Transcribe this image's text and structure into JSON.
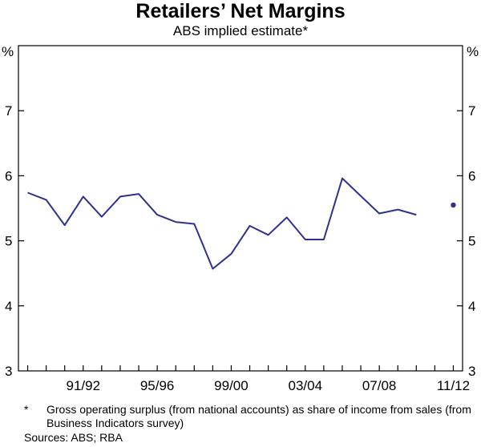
{
  "title": "Retailers’ Net Margins",
  "subtitle": "ABS implied estimate*",
  "footnote": {
    "marker": "*",
    "text": "Gross operating surplus (from national accounts) as share of income from sales (from Business Indicators survey)"
  },
  "sources": "Sources: ABS; RBA",
  "colors": {
    "series": "#2e3192",
    "axis": "#000000"
  },
  "chart_data": {
    "type": "line",
    "y_unit_left": "%",
    "y_unit_right": "%",
    "ylim": [
      3,
      8
    ],
    "yticks": [
      3,
      4,
      5,
      6,
      7
    ],
    "xlim": [
      1988.5,
      2012.5
    ],
    "x_tick_labels": [
      "91/92",
      "95/96",
      "99/00",
      "03/04",
      "07/08",
      "11/12"
    ],
    "x_tick_positions": [
      1992,
      1996,
      2000,
      2004,
      2008,
      2012
    ],
    "grid": false,
    "series": [
      {
        "x": [
          1989,
          1990,
          1991,
          1992,
          1993,
          1994,
          1995,
          1996,
          1997,
          1998,
          1999,
          2000,
          2001,
          2002,
          2003,
          2004,
          2005,
          2006,
          2007,
          2008,
          2009,
          2010,
          2011
        ],
        "values": [
          5.74,
          5.63,
          5.24,
          5.68,
          5.37,
          5.68,
          5.72,
          5.4,
          5.29,
          5.26,
          4.57,
          4.8,
          5.23,
          5.09,
          5.36,
          5.02,
          5.02,
          5.96,
          5.69,
          5.42,
          5.48,
          5.4,
          null
        ]
      },
      {
        "x": [
          2012
        ],
        "values": [
          5.55
        ],
        "style": "point"
      }
    ]
  }
}
